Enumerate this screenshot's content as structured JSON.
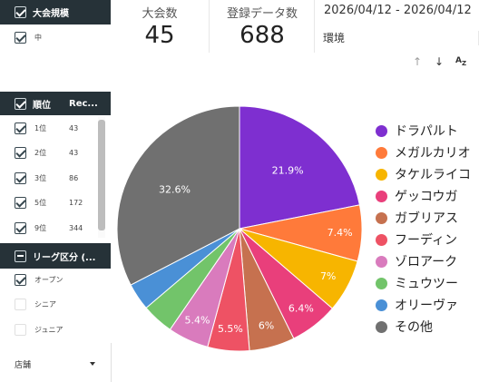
{
  "filters": {
    "scale": {
      "header": "大会規模",
      "items": [
        {
          "label": "中",
          "checked": true
        }
      ]
    },
    "rank": {
      "header": {
        "label": "順位",
        "count_header": "Rec..."
      },
      "items": [
        {
          "label": "1位",
          "count": "43",
          "checked": true
        },
        {
          "label": "2位",
          "count": "43",
          "checked": true
        },
        {
          "label": "3位",
          "count": "86",
          "checked": true
        },
        {
          "label": "5位",
          "count": "172",
          "checked": true
        },
        {
          "label": "9位",
          "count": "344",
          "checked": true
        }
      ]
    },
    "league": {
      "header": "リーグ区分 (...",
      "items": [
        {
          "label": "オープン",
          "checked": true
        },
        {
          "label": "シニア",
          "checked": false
        },
        {
          "label": "ジュニア",
          "checked": false
        }
      ]
    },
    "store": {
      "label": "店舗"
    }
  },
  "metrics": {
    "tournaments": {
      "label": "大会数",
      "value": "45"
    },
    "entries": {
      "label": "登録データ数",
      "value": "688"
    },
    "date_range": "2026/04/12 - 2026/04/12",
    "environment_label": "環境"
  },
  "chart_data": {
    "type": "pie",
    "series": [
      {
        "name": "ドラパルト",
        "value": 21.9,
        "label": "21.9%",
        "color": "#7e2fd0"
      },
      {
        "name": "メガルカリオ",
        "value": 7.4,
        "label": "7.4%",
        "color": "#ff7a3a"
      },
      {
        "name": "タケルライコ",
        "value": 7.0,
        "label": "7%",
        "color": "#f7b500"
      },
      {
        "name": "ゲッコウガ",
        "value": 6.4,
        "label": "6.4%",
        "color": "#e93f7b"
      },
      {
        "name": "ガブリアス",
        "value": 6.0,
        "label": "6%",
        "color": "#c6714f"
      },
      {
        "name": "フーディン",
        "value": 5.5,
        "label": "5.5%",
        "color": "#ee5264"
      },
      {
        "name": "ゾロアーク",
        "value": 5.4,
        "label": "5.4%",
        "color": "#d97bbd"
      },
      {
        "name": "ミュウツー",
        "value": 4.2,
        "label": "",
        "color": "#72c46a"
      },
      {
        "name": "オリーヴァ",
        "value": 3.6,
        "label": "",
        "color": "#4a90d6"
      },
      {
        "name": "その他",
        "value": 32.6,
        "label": "32.6%",
        "color": "#707070"
      }
    ]
  }
}
